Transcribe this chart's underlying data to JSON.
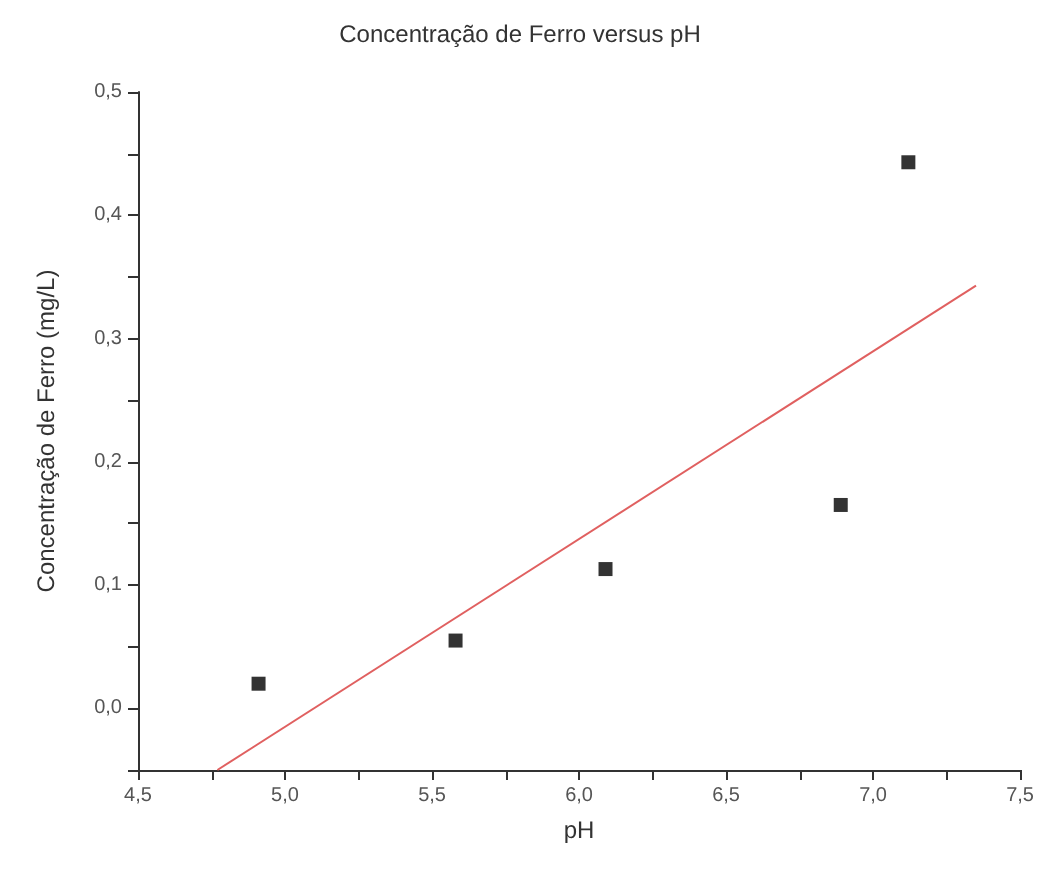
{
  "chart_data": {
    "type": "scatter",
    "title": "Concentração de Ferro versus pH",
    "xlabel": "pH",
    "ylabel": "Concentração de Ferro (mg/L)",
    "marker": "square",
    "grid": false,
    "xlim": [
      4.5,
      7.5
    ],
    "ylim": [
      -0.05,
      0.5
    ],
    "xticks": [
      {
        "value": 4.5,
        "label": "4,5"
      },
      {
        "value": 5,
        "label": "5,0"
      },
      {
        "value": 5.5,
        "label": "5,5"
      },
      {
        "value": 6,
        "label": "6,0"
      },
      {
        "value": 6.5,
        "label": "6,5"
      },
      {
        "value": 7,
        "label": "7,0"
      },
      {
        "value": 7.5,
        "label": "7,5"
      }
    ],
    "yticks": [
      {
        "value": 0,
        "label": "0,0"
      },
      {
        "value": 0.1,
        "label": "0,1"
      },
      {
        "value": 0.2,
        "label": "0,2"
      },
      {
        "value": 0.3,
        "label": "0,3"
      },
      {
        "value": 0.4,
        "label": "0,4"
      },
      {
        "value": 0.5,
        "label": "0,5"
      }
    ],
    "series": [
      {
        "color": "#000000",
        "x": [
          4.91,
          5.58,
          6.09,
          6.89,
          7.12
        ],
        "values": [
          0.02,
          0.055,
          0.113,
          0.165,
          0.443
        ]
      },
      {
        "type": "line",
        "color": "#e06060",
        "marker": "none",
        "line_style": "solid",
        "x": [
          4.77,
          7.35
        ],
        "values": [
          -0.05,
          0.343
        ]
      }
    ]
  }
}
